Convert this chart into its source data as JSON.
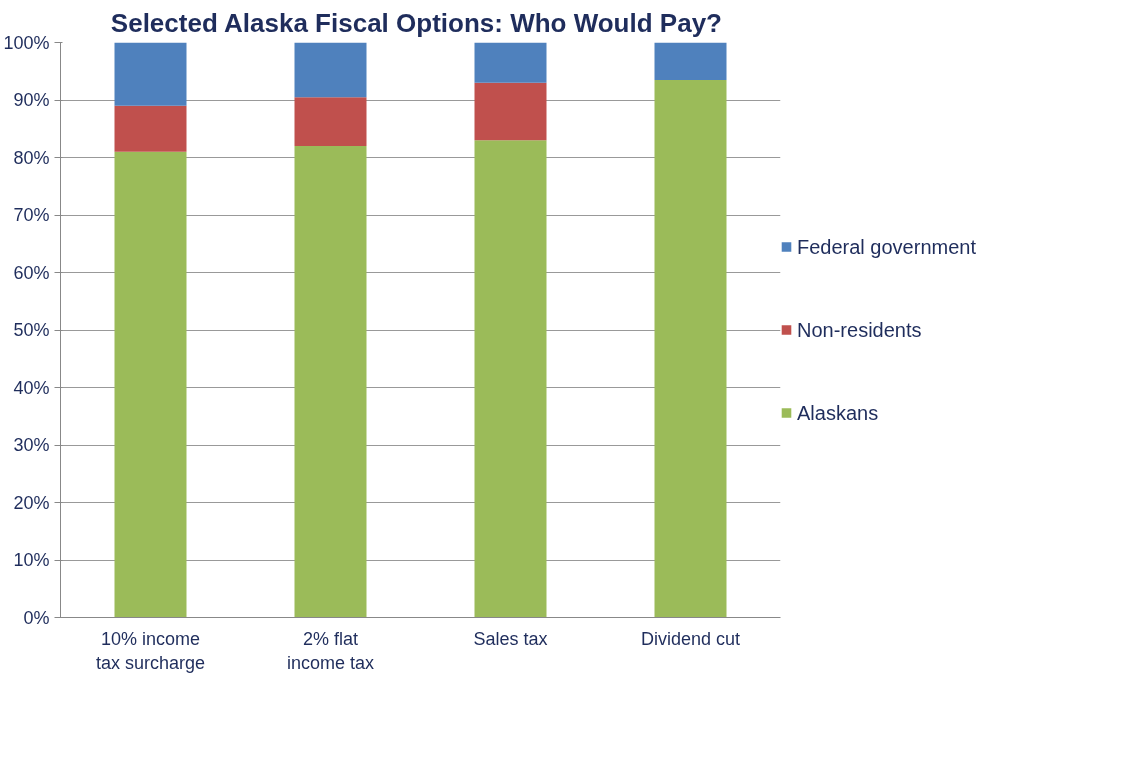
{
  "chart_data": {
    "type": "bar",
    "title": "Selected Alaska Fiscal Options:  Who Would Pay?",
    "categories": [
      "10% income tax surcharge",
      "2% flat income tax",
      "Sales tax",
      "Dividend cut"
    ],
    "stacked": true,
    "series": [
      {
        "name": "Alaskans",
        "color": "#9bbb59",
        "values": [
          81,
          82,
          83,
          93.5
        ]
      },
      {
        "name": "Non-residents",
        "color": "#c0504d",
        "values": [
          8,
          8.5,
          10,
          0
        ]
      },
      {
        "name": "Federal government",
        "color": "#4f81bd",
        "values": [
          11,
          9.5,
          7,
          6.5
        ]
      }
    ],
    "ylim": [
      0,
      100
    ],
    "yticks": [
      {
        "value": 0,
        "label": "0%"
      },
      {
        "value": 10,
        "label": "10%"
      },
      {
        "value": 20,
        "label": "20%"
      },
      {
        "value": 30,
        "label": "30%"
      },
      {
        "value": 40,
        "label": "40%"
      },
      {
        "value": 50,
        "label": "50%"
      },
      {
        "value": 60,
        "label": "60%"
      },
      {
        "value": 70,
        "label": "70%"
      },
      {
        "value": 80,
        "label": "80%"
      },
      {
        "value": 90,
        "label": "90%"
      },
      {
        "value": 100,
        "label": "100%"
      }
    ],
    "grid": "y",
    "legend": "right"
  }
}
